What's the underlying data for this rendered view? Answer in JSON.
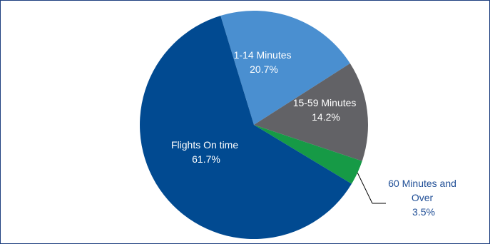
{
  "chart_data": {
    "type": "pie",
    "title": "",
    "start_angle_deg": -17,
    "direction": "clockwise",
    "slices": [
      {
        "name": "1-14 Minutes",
        "percent_label": "20.7%",
        "value": 20.7,
        "color": "#4a8fd0",
        "label_color": "#ffffff"
      },
      {
        "name": "15-59 Minutes",
        "percent_label": "14.2%",
        "value": 14.2,
        "color": "#626266",
        "label_color": "#ffffff"
      },
      {
        "name_lines": [
          "60 Minutes and",
          "Over"
        ],
        "percent_label": "3.5%",
        "value": 3.5,
        "color": "#169a46",
        "label_color": "#1f4e96"
      },
      {
        "name": "Flights On time",
        "percent_label": "61.7%",
        "value": 61.7,
        "color": "#014a91",
        "label_color": "#ffffff"
      }
    ]
  }
}
